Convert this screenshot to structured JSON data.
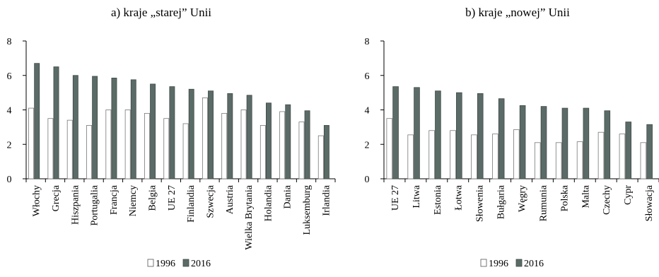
{
  "chart_data": [
    {
      "type": "bar",
      "title": "a) kraje „starej” Unii",
      "categories": [
        "Włochy",
        "Grecja",
        "Hiszpania",
        "Portugalia",
        "Francja",
        "Niemcy",
        "Belgia",
        "UE 27",
        "Finlandia",
        "Szwecja",
        "Austria",
        "Wielka Brytania",
        "Holandia",
        "Dania",
        "Luksemburg",
        "Irlandia"
      ],
      "series": [
        {
          "name": "1996",
          "color": "#ffffff",
          "values": [
            4.1,
            3.5,
            3.4,
            3.1,
            4.0,
            4.0,
            3.8,
            3.5,
            3.2,
            4.7,
            3.8,
            4.0,
            3.1,
            3.9,
            3.3,
            2.5
          ]
        },
        {
          "name": "2016",
          "color": "#5b6b67",
          "values": [
            6.7,
            6.5,
            6.0,
            5.95,
            5.85,
            5.75,
            5.5,
            5.35,
            5.2,
            5.1,
            4.95,
            4.85,
            4.4,
            4.3,
            3.95,
            3.1
          ]
        }
      ],
      "ylim": [
        0,
        8
      ],
      "yticks": [
        0,
        2,
        4,
        6,
        8
      ],
      "grid": false,
      "legend": "bottom"
    },
    {
      "type": "bar",
      "title": "b) kraje „nowej” Unii",
      "categories": [
        "UE 27",
        "Litwa",
        "Estonia",
        "Łotwa",
        "Słowenia",
        "Bułgaria",
        "Węgry",
        "Rumunia",
        "Polska",
        "Malta",
        "Czechy",
        "Cypr",
        "Słowacja"
      ],
      "series": [
        {
          "name": "1996",
          "color": "#ffffff",
          "values": [
            3.5,
            2.55,
            2.8,
            2.8,
            2.55,
            2.6,
            2.85,
            2.1,
            2.1,
            2.15,
            2.7,
            2.6,
            2.1
          ]
        },
        {
          "name": "2016",
          "color": "#5b6b67",
          "values": [
            5.35,
            5.3,
            5.1,
            5.0,
            4.95,
            4.65,
            4.25,
            4.2,
            4.1,
            4.1,
            3.95,
            3.3,
            3.15
          ]
        }
      ],
      "ylim": [
        0,
        8
      ],
      "yticks": [
        0,
        2,
        4,
        6,
        8
      ],
      "grid": false,
      "legend": "bottom"
    }
  ]
}
